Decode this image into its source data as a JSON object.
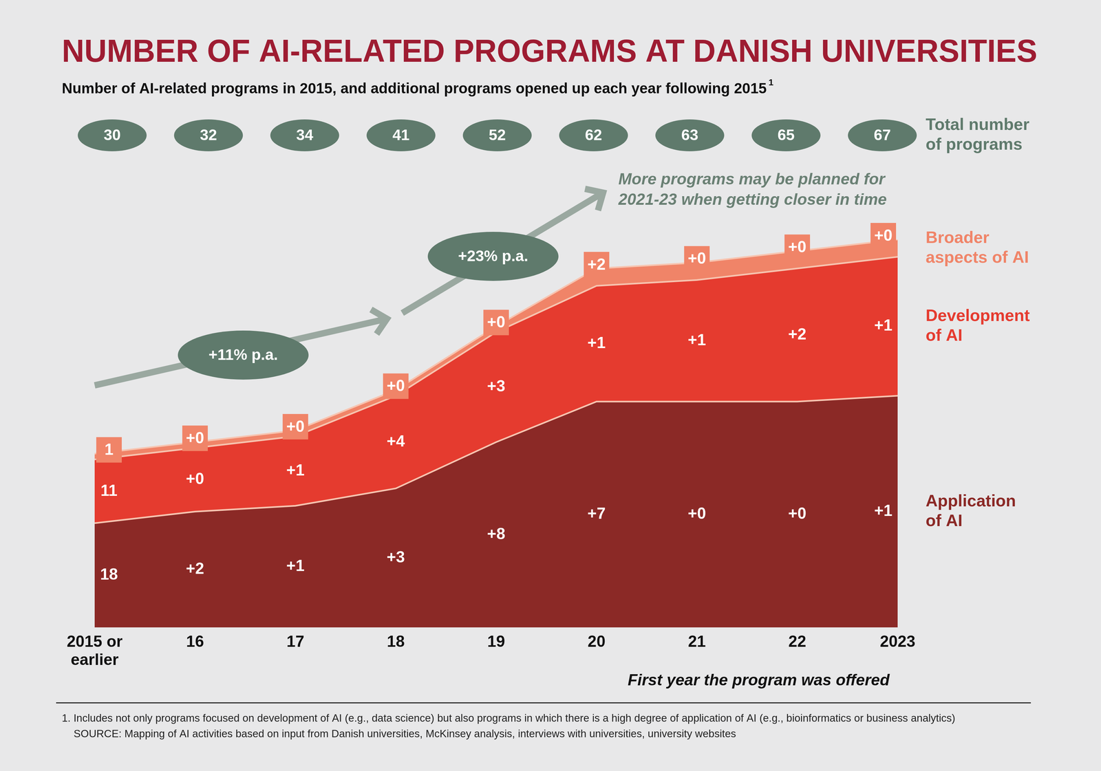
{
  "chart_data": {
    "type": "area",
    "title": "NUMBER OF AI-RELATED PROGRAMS AT DANISH UNIVERSITIES",
    "subtitle": "Number of AI-related programs in 2015, and additional programs opened up each year following 2015",
    "subtitle_footnote": "1",
    "x_label": "First year the program was offered",
    "categories": [
      "2015 or earlier",
      "16",
      "17",
      "18",
      "19",
      "20",
      "21",
      "22",
      "2023"
    ],
    "series": [
      {
        "name": "Application of AI",
        "color": "#8b2926",
        "values": [
          18,
          2,
          1,
          3,
          8,
          7,
          0,
          0,
          1
        ],
        "value_labels": [
          "18",
          "+2",
          "+1",
          "+3",
          "+8",
          "+7",
          "+0",
          "+0",
          "+1"
        ]
      },
      {
        "name": "Development of AI",
        "color": "#e53b2f",
        "values": [
          11,
          0,
          1,
          4,
          3,
          1,
          1,
          2,
          1
        ],
        "value_labels": [
          "11",
          "+0",
          "+1",
          "+4",
          "+3",
          "+1",
          "+1",
          "+2",
          "+1"
        ]
      },
      {
        "name": "Broader aspects of AI",
        "color": "#f08468",
        "values": [
          1,
          0,
          0,
          0,
          0,
          2,
          0,
          0,
          0
        ],
        "value_labels": [
          "1",
          "+0",
          "+0",
          "+0",
          "+0",
          "+2",
          "+0",
          "+0",
          "+0"
        ]
      }
    ],
    "totals": {
      "label": "Total number of programs",
      "values": [
        30,
        32,
        34,
        41,
        52,
        62,
        63,
        65,
        67
      ]
    },
    "growth_annotations": [
      "+11% p.a.",
      "+23% p.a."
    ],
    "annotation": [
      "More programs may be planned for",
      "2021-23 when getting closer in time"
    ],
    "footnotes": [
      "1. Includes not only programs focused on development of AI (e.g., data science) but also programs in which there is a high degree of application of AI (e.g., bioinformatics or business analytics)",
      "SOURCE: Mapping of AI activities based on input from Danish universities, McKinsey analysis, interviews with universities, university websites"
    ],
    "ylim": [
      0,
      67
    ],
    "stacked": true,
    "data_labels": true,
    "tick_labels": "x",
    "grid": false,
    "legend": "right"
  }
}
